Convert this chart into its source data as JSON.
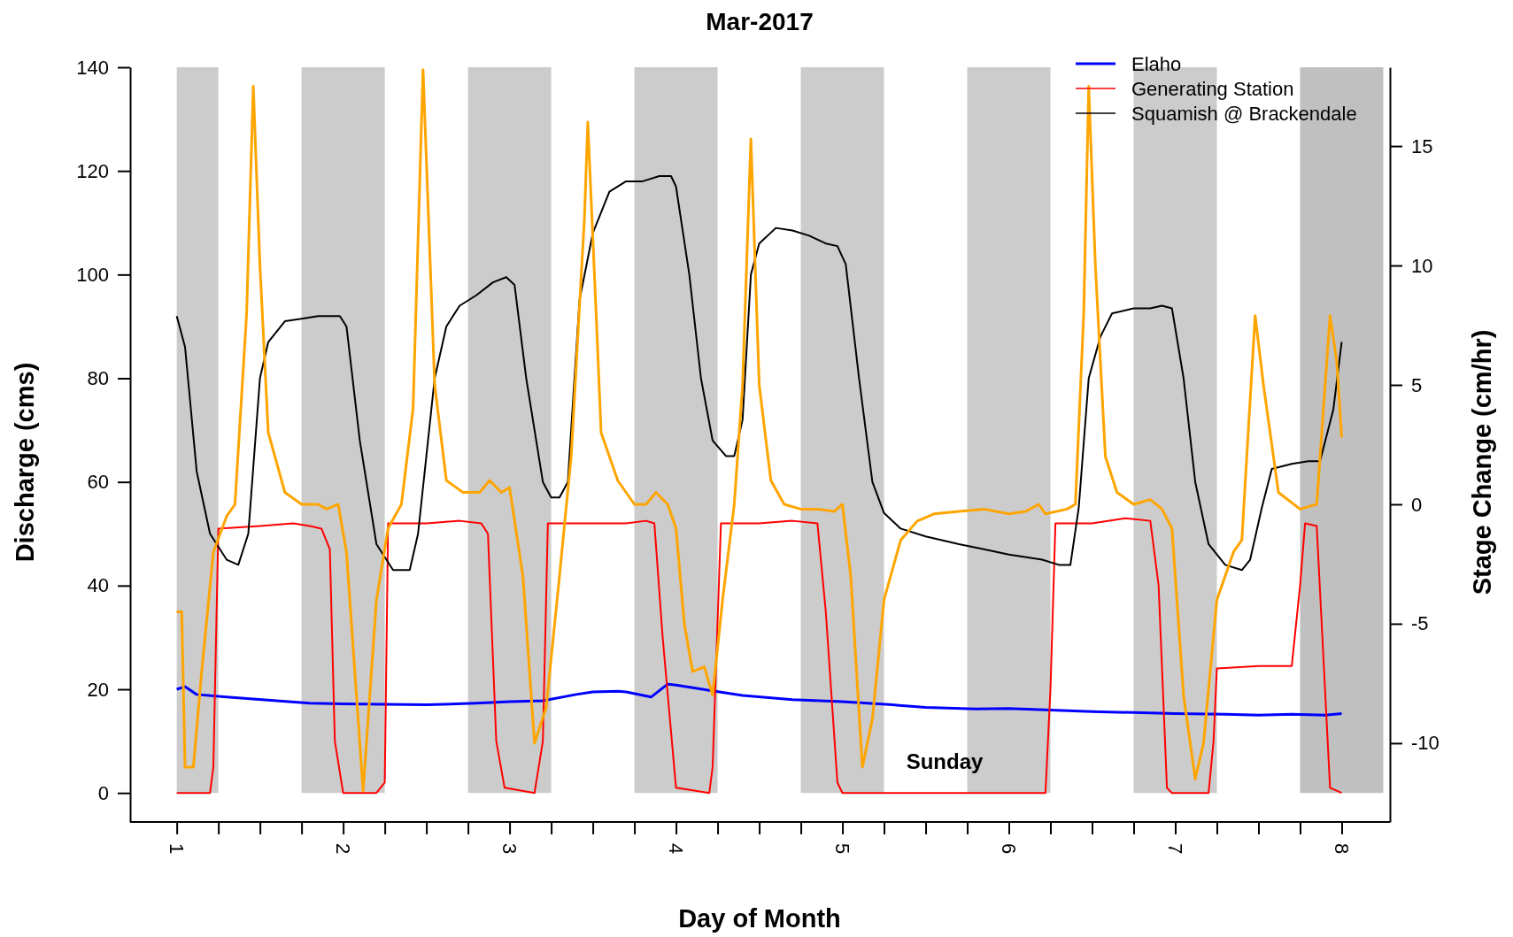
{
  "chart_data": {
    "type": "line",
    "title": "Mar-2017",
    "xlabel": "Day of Month",
    "ylabel": "Discharge (cms)",
    "y2label": "Stage Change (cm/hr)",
    "xlim": [
      0.72,
      8.29
    ],
    "ylim": [
      -5.6,
      140
    ],
    "y2lim": [
      -13.3,
      18.3
    ],
    "xticks": [
      1,
      {
        "value": 1.25,
        "label": null
      },
      {
        "value": 1.5,
        "label": null
      },
      {
        "value": 1.75,
        "label": null
      },
      2,
      {
        "value": 2.25,
        "label": null
      },
      {
        "value": 2.5,
        "label": null
      },
      {
        "value": 2.75,
        "label": null
      },
      3,
      {
        "value": 3.25,
        "label": null
      },
      {
        "value": 3.5,
        "label": null
      },
      {
        "value": 3.75,
        "label": null
      },
      4,
      {
        "value": 4.25,
        "label": null
      },
      {
        "value": 4.5,
        "label": null
      },
      {
        "value": 4.75,
        "label": null
      },
      5,
      {
        "value": 5.25,
        "label": null
      },
      {
        "value": 5.5,
        "label": null
      },
      {
        "value": 5.75,
        "label": null
      },
      6,
      {
        "value": 6.25,
        "label": null
      },
      {
        "value": 6.5,
        "label": null
      },
      {
        "value": 6.75,
        "label": null
      },
      7,
      {
        "value": 7.25,
        "label": null
      },
      {
        "value": 7.5,
        "label": null
      },
      {
        "value": 7.75,
        "label": null
      },
      8
    ],
    "yticks": [
      0,
      20,
      40,
      60,
      80,
      100,
      120,
      140
    ],
    "y2ticks": [
      -10,
      -5,
      0,
      5,
      10,
      15
    ],
    "legend": "top right",
    "grid": false,
    "bands": [
      {
        "axis": "x",
        "from": 1,
        "to": 1.25,
        "color": "#cccccc"
      },
      {
        "axis": "x",
        "from": 1.75,
        "to": 2.25,
        "color": "#cccccc"
      },
      {
        "axis": "x",
        "from": 2.75,
        "to": 3.25,
        "color": "#cccccc"
      },
      {
        "axis": "x",
        "from": 3.75,
        "to": 4.25,
        "color": "#cccccc"
      },
      {
        "axis": "x",
        "from": 4.75,
        "to": 5.25,
        "color": "#cccccc"
      },
      {
        "axis": "x",
        "from": 5.75,
        "to": 6.25,
        "color": "#cccccc"
      },
      {
        "axis": "x",
        "from": 6.75,
        "to": 7.25,
        "color": "#cccccc"
      },
      {
        "axis": "x",
        "from": 7.75,
        "to": 8.25,
        "color": "#c0c0c0"
      }
    ],
    "annotations": [
      "Sunday"
    ],
    "series": [
      {
        "name": "Elaho",
        "color": "#0000ff",
        "x": [
          1,
          1.05,
          1.12,
          1.3,
          1.6,
          1.8,
          2.0,
          2.5,
          2.8,
          3.0,
          3.2,
          3.4,
          3.5,
          3.65,
          3.7,
          3.85,
          3.95,
          4.0,
          4.2,
          4.4,
          4.7,
          5.0,
          5.3,
          5.5,
          5.8,
          6.0,
          6.5,
          7.0,
          7.3,
          7.5,
          7.7,
          7.9,
          8.0
        ],
        "values": [
          20,
          20.5,
          19,
          18.5,
          17.8,
          17.3,
          17.2,
          17.0,
          17.3,
          17.6,
          17.8,
          19,
          19.5,
          19.6,
          19.5,
          18.5,
          21,
          20.8,
          19.8,
          18.8,
          18,
          17.6,
          17,
          16.5,
          16.2,
          16.3,
          15.7,
          15.3,
          15.2,
          15,
          15.2,
          15,
          15.3
        ]
      },
      {
        "name": "Generating Station",
        "color": "#ff0000",
        "x": [
          1,
          1.2,
          1.22,
          1.25,
          1.5,
          1.7,
          1.8,
          1.87,
          1.92,
          1.95,
          2.0,
          2.2,
          2.25,
          2.27,
          2.5,
          2.7,
          2.83,
          2.87,
          2.92,
          2.97,
          3.15,
          3.2,
          3.23,
          3.5,
          3.7,
          3.82,
          3.87,
          3.92,
          4.0,
          4.2,
          4.22,
          4.27,
          4.5,
          4.7,
          4.85,
          4.9,
          4.97,
          5.0,
          6.22,
          6.25,
          6.28,
          6.5,
          6.7,
          6.85,
          6.9,
          6.95,
          6.98,
          7.2,
          7.23,
          7.25,
          7.5,
          7.7,
          7.75,
          7.78,
          7.85,
          7.9,
          7.93,
          8.0
        ],
        "values": [
          0,
          0,
          5,
          51,
          51.5,
          52,
          51.5,
          51,
          47,
          10,
          0,
          0,
          2,
          52,
          52,
          52.5,
          52,
          50,
          10,
          1,
          0,
          10,
          52,
          52,
          52,
          52.5,
          52,
          30,
          1,
          0,
          5,
          52,
          52,
          52.5,
          52,
          35,
          2,
          0,
          0,
          20,
          52,
          52,
          53,
          52.5,
          40,
          1,
          0,
          0,
          10,
          24,
          24.5,
          24.5,
          40,
          52,
          51.5,
          20,
          1,
          0
        ]
      },
      {
        "name": "Squamish @ Brackendale",
        "color": "#000000",
        "x": [
          1,
          1.05,
          1.12,
          1.2,
          1.3,
          1.37,
          1.43,
          1.5,
          1.55,
          1.65,
          1.75,
          1.85,
          1.98,
          2.02,
          2.1,
          2.2,
          2.3,
          2.4,
          2.45,
          2.55,
          2.62,
          2.7,
          2.8,
          2.9,
          2.98,
          3.03,
          3.1,
          3.2,
          3.25,
          3.3,
          3.35,
          3.42,
          3.5,
          3.6,
          3.7,
          3.8,
          3.9,
          3.97,
          4.0,
          4.08,
          4.15,
          4.22,
          4.3,
          4.35,
          4.4,
          4.45,
          4.5,
          4.6,
          4.7,
          4.8,
          4.9,
          4.97,
          5.02,
          5.1,
          5.18,
          5.25,
          5.35,
          5.5,
          5.7,
          5.85,
          6.0,
          6.2,
          6.3,
          6.37,
          6.42,
          6.48,
          6.55,
          6.62,
          6.75,
          6.85,
          6.92,
          6.98,
          7.05,
          7.12,
          7.2,
          7.3,
          7.4,
          7.45,
          7.52,
          7.58,
          7.7,
          7.8,
          7.87,
          7.95,
          8.0
        ],
        "values": [
          92,
          86,
          62,
          50,
          45,
          44,
          50,
          80,
          87,
          91,
          91.5,
          92,
          92,
          90,
          68,
          48,
          43,
          43,
          50,
          80,
          90,
          94,
          96,
          98.5,
          99.5,
          98,
          80,
          60,
          57,
          57,
          60,
          95,
          108,
          116,
          118,
          118,
          119,
          119,
          117,
          100,
          80,
          68,
          65,
          65,
          72,
          100,
          106,
          109,
          108.5,
          107.5,
          106,
          105.5,
          102,
          80,
          60,
          54,
          51,
          49.5,
          48,
          47,
          46,
          45,
          44,
          44,
          55,
          80,
          88,
          92.5,
          93.5,
          93.5,
          94,
          93.5,
          80,
          60,
          48,
          44,
          43,
          45,
          55,
          62.5,
          63.5,
          64,
          64,
          74,
          87
        ]
      },
      {
        "color": "#ffa500",
        "axis": "y2",
        "x": [
          1.0,
          1.03,
          1.05,
          1.1,
          1.15,
          1.22,
          1.3,
          1.35,
          1.42,
          1.46,
          1.5,
          1.55,
          1.65,
          1.75,
          1.85,
          1.9,
          1.97,
          2.02,
          2.1,
          2.12,
          2.2,
          2.27,
          2.35,
          2.42,
          2.48,
          2.55,
          2.62,
          2.72,
          2.82,
          2.88,
          2.95,
          3.0,
          3.08,
          3.15,
          3.22,
          3.3,
          3.37,
          3.45,
          3.47,
          3.52,
          3.55,
          3.65,
          3.75,
          3.82,
          3.88,
          3.95,
          4.0,
          4.05,
          4.1,
          4.17,
          4.22,
          4.28,
          4.35,
          4.4,
          4.45,
          4.5,
          4.57,
          4.65,
          4.75,
          4.85,
          4.95,
          5.0,
          5.05,
          5.12,
          5.18,
          5.25,
          5.35,
          5.45,
          5.55,
          5.7,
          5.85,
          6.0,
          6.1,
          6.18,
          6.22,
          6.35,
          6.4,
          6.45,
          6.48,
          6.52,
          6.58,
          6.65,
          6.75,
          6.85,
          6.92,
          6.98,
          7.05,
          7.12,
          7.17,
          7.25,
          7.35,
          7.4,
          7.48,
          7.53,
          7.62,
          7.75,
          7.85,
          7.93,
          7.97,
          8.0
        ],
        "values": [
          -4.5,
          -4.5,
          -11,
          -11,
          -7,
          -2,
          -0.5,
          0,
          8,
          17.5,
          10,
          3,
          0.5,
          0,
          0,
          -0.2,
          0,
          -2,
          -10,
          -12,
          -4,
          -1,
          0,
          4,
          18.2,
          5,
          1,
          0.5,
          0.5,
          1,
          0.5,
          0.7,
          -3,
          -10,
          -8.5,
          -3,
          2,
          12,
          16,
          8,
          3,
          1,
          0,
          0,
          0.5,
          0,
          -1,
          -5,
          -7,
          -6.8,
          -8,
          -4,
          0,
          5,
          15.3,
          5,
          1,
          0,
          -0.2,
          -0.2,
          -0.3,
          0,
          -3,
          -11,
          -9,
          -4,
          -1.5,
          -0.7,
          -0.4,
          -0.3,
          -0.2,
          -0.4,
          -0.3,
          0,
          -0.4,
          -0.2,
          0,
          8,
          17.5,
          10,
          2,
          0.5,
          0,
          0.2,
          -0.2,
          -1,
          -8,
          -11.5,
          -10,
          -4,
          -2,
          -1.5,
          7.9,
          5,
          0.5,
          -0.2,
          0,
          7.9,
          6,
          2.8
        ]
      }
    ]
  }
}
